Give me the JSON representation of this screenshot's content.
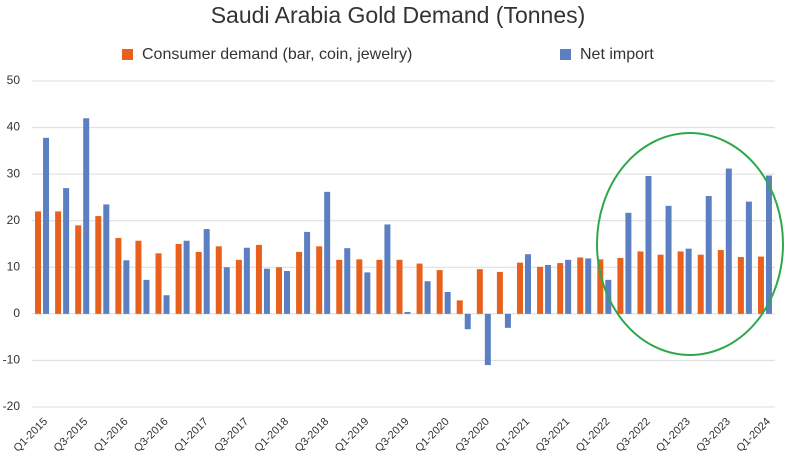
{
  "chart_data": {
    "type": "bar",
    "title": "Saudi Arabia Gold Demand (Tonnes)",
    "categories": [
      "Q1-2015",
      null,
      "Q3-2015",
      null,
      "Q1-2016",
      null,
      "Q3-2016",
      null,
      "Q1-2017",
      null,
      "Q3-2017",
      null,
      "Q1-2018",
      null,
      "Q3-2018",
      null,
      "Q1-2019",
      null,
      "Q3-2019",
      null,
      "Q1-2020",
      null,
      "Q3-2020",
      null,
      "Q1-2021",
      null,
      "Q3-2021",
      null,
      "Q1-2022",
      null,
      "Q3-2022",
      null,
      "Q1-2023",
      null,
      "Q3-2023",
      null,
      "Q1-2024"
    ],
    "series": [
      {
        "name": "Consumer demand (bar, coin, jewelry)",
        "color": "#e8601c",
        "values": [
          22,
          22,
          19,
          21,
          16.3,
          15.7,
          13,
          15,
          13.3,
          14.5,
          11.6,
          14.8,
          10,
          13.3,
          14.5,
          11.6,
          11.7,
          11.6,
          11.6,
          10.8,
          9.4,
          2.9,
          9.6,
          9,
          11,
          10.1,
          10.9,
          12.1,
          11.7,
          12,
          13.4,
          12.7,
          13.4,
          12.7,
          13.7,
          12.2,
          12.3
        ]
      },
      {
        "name": "Net import",
        "color": "#5b7fc0",
        "values": [
          37.8,
          27,
          42,
          23.5,
          11.5,
          7.3,
          4,
          15.7,
          18.2,
          10,
          14.2,
          9.7,
          9.2,
          17.6,
          26.2,
          14.1,
          8.9,
          19.2,
          0.4,
          7,
          4.7,
          -3.3,
          -11,
          -3,
          12.8,
          10.5,
          11.6,
          11.9,
          7.3,
          21.7,
          29.6,
          23.2,
          14,
          25.3,
          31.2,
          24.1,
          29.7
        ]
      }
    ],
    "ylim": [
      -20,
      50
    ],
    "yticks": [
      -20,
      -10,
      0,
      10,
      20,
      30,
      40,
      50
    ],
    "grid": true
  }
}
